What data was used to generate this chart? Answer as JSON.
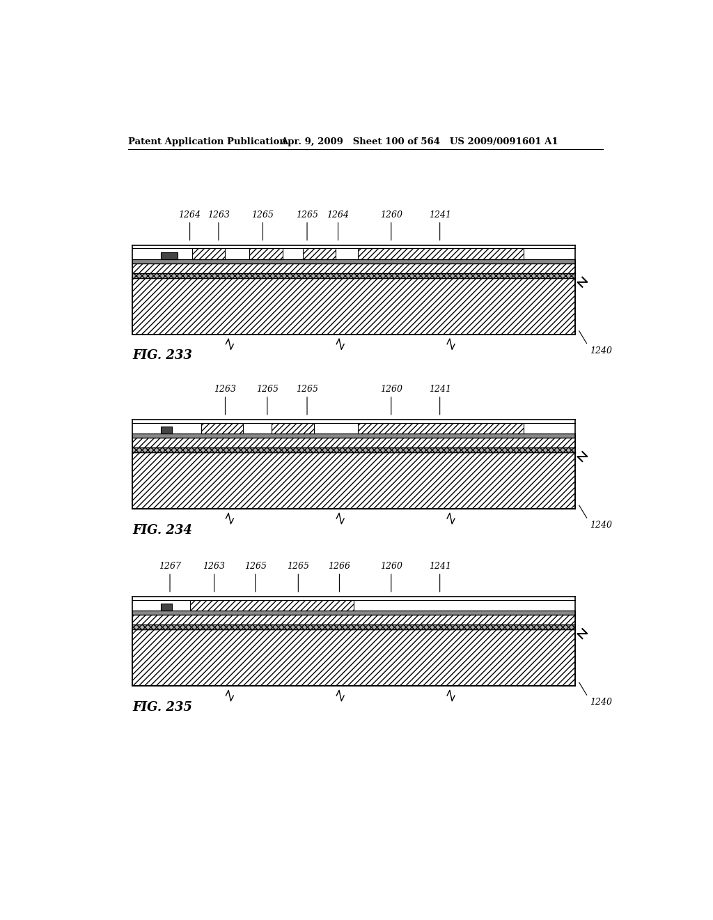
{
  "bg_color": "#ffffff",
  "header_left": "Patent Application Publication",
  "header_right": "Apr. 9, 2009   Sheet 100 of 564   US 2009/0091601 A1",
  "fig233": {
    "name": "FIG. 233",
    "ref": "1240",
    "labels": [
      "1264",
      "1263",
      "1265",
      "1265",
      "1264",
      "1260",
      "1241"
    ],
    "label_fx": [
      0.13,
      0.195,
      0.295,
      0.395,
      0.465,
      0.585,
      0.695
    ],
    "pads": [
      {
        "fx": 0.065,
        "fw": 0.038,
        "type": "solid"
      },
      {
        "fx": 0.135,
        "fw": 0.075,
        "type": "hatch"
      },
      {
        "fx": 0.265,
        "fw": 0.075,
        "type": "hatch"
      },
      {
        "fx": 0.385,
        "fw": 0.075,
        "type": "hatch"
      },
      {
        "fx": 0.51,
        "fw": 0.375,
        "type": "hatch_long"
      }
    ]
  },
  "fig234": {
    "name": "FIG. 234",
    "ref": "1240",
    "labels": [
      "1263",
      "1265",
      "1265",
      "1260",
      "1241"
    ],
    "label_fx": [
      0.21,
      0.305,
      0.395,
      0.585,
      0.695
    ],
    "pads": [
      {
        "fx": 0.065,
        "fw": 0.025,
        "type": "solid"
      },
      {
        "fx": 0.155,
        "fw": 0.095,
        "type": "hatch"
      },
      {
        "fx": 0.315,
        "fw": 0.095,
        "type": "hatch"
      },
      {
        "fx": 0.51,
        "fw": 0.375,
        "type": "hatch_long"
      }
    ]
  },
  "fig235": {
    "name": "FIG. 235",
    "ref": "1240",
    "labels": [
      "1267",
      "1263",
      "1265",
      "1265",
      "1266",
      "1260",
      "1241"
    ],
    "label_fx": [
      0.085,
      0.185,
      0.278,
      0.375,
      0.468,
      0.585,
      0.695
    ],
    "pads": [
      {
        "fx": 0.065,
        "fw": 0.025,
        "type": "solid"
      },
      {
        "fx": 0.13,
        "fw": 0.37,
        "type": "hatch_long"
      }
    ]
  }
}
